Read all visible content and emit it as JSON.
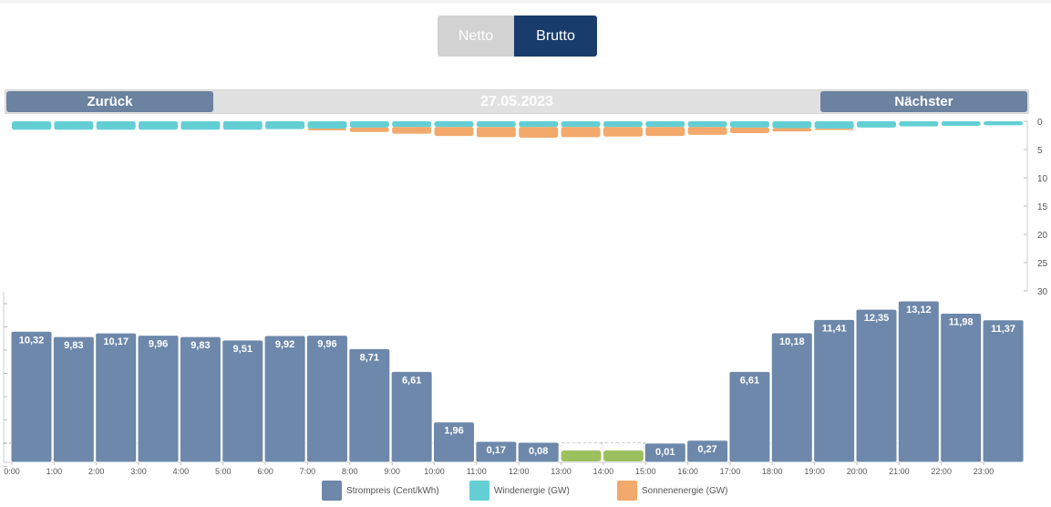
{
  "toggle": {
    "netto_label": "Netto",
    "brutto_label": "Brutto",
    "selected": "Brutto"
  },
  "nav": {
    "back_label": "Zurück",
    "date": "27.05.2023",
    "next_label": "Nächster"
  },
  "colors": {
    "price": "#6d88aa",
    "price_low": "#9dc05e",
    "wind": "#63cfd4",
    "solar": "#f2a96b",
    "toggle_active": "#183c6b",
    "toggle_inactive": "#d2d2d2",
    "nav_button": "#6b82a1"
  },
  "chart_data": [
    {
      "type": "bar",
      "categories": [
        "0:00",
        "1:00",
        "2:00",
        "3:00",
        "4:00",
        "5:00",
        "6:00",
        "7:00",
        "8:00",
        "9:00",
        "10:00",
        "11:00",
        "12:00",
        "13:00",
        "14:00",
        "15:00",
        "16:00",
        "17:00",
        "18:00",
        "19:00",
        "20:00",
        "21:00",
        "22:00",
        "23:00"
      ],
      "series": [
        {
          "name": "Strompreis (Cent/kWh)",
          "values": [
            10.32,
            9.83,
            10.17,
            9.96,
            9.83,
            9.51,
            9.92,
            9.96,
            8.71,
            6.61,
            1.96,
            0.17,
            0.08,
            -0.5,
            -0.5,
            0.01,
            0.27,
            6.61,
            10.18,
            11.41,
            12.35,
            13.12,
            11.98,
            11.37
          ],
          "labels": [
            "10,32",
            "9,83",
            "10,17",
            "9,96",
            "9,83",
            "9,51",
            "9,92",
            "9,96",
            "8,71",
            "6,61",
            "1,96",
            "0,17",
            "0,08",
            "",
            "",
            "0,01",
            "0,27",
            "6,61",
            "10,18",
            "11,41",
            "12,35",
            "13,12",
            "11,98",
            "11,37"
          ]
        }
      ],
      "xlabel": "",
      "ylabel": "",
      "ylim": [
        -1,
        14
      ],
      "grid": false
    },
    {
      "type": "bar",
      "stacked": true,
      "categories": [
        "0:00",
        "1:00",
        "2:00",
        "3:00",
        "4:00",
        "5:00",
        "6:00",
        "7:00",
        "8:00",
        "9:00",
        "10:00",
        "11:00",
        "12:00",
        "13:00",
        "14:00",
        "15:00",
        "16:00",
        "17:00",
        "18:00",
        "19:00",
        "20:00",
        "21:00",
        "22:00",
        "23:00"
      ],
      "series": [
        {
          "name": "Windenergie (GW)",
          "values": [
            1.5,
            1.5,
            1.5,
            1.5,
            1.5,
            1.5,
            1.4,
            1.3,
            1.1,
            1.0,
            1.0,
            1.0,
            1.0,
            1.0,
            1.0,
            1.0,
            1.0,
            1.1,
            1.2,
            1.3,
            1.1,
            0.9,
            0.8,
            0.7
          ]
        },
        {
          "name": "Sonnenenergie (GW)",
          "values": [
            0,
            0,
            0,
            0,
            0,
            0,
            0,
            0.3,
            0.8,
            1.2,
            1.6,
            1.8,
            1.9,
            1.8,
            1.7,
            1.6,
            1.4,
            1.0,
            0.6,
            0.2,
            0,
            0,
            0,
            0
          ]
        }
      ],
      "yticks": [
        "0",
        "5",
        "10",
        "15",
        "20",
        "25",
        "30"
      ],
      "ylim": [
        0,
        30
      ],
      "y_inverted": true,
      "grid": false
    }
  ],
  "legend": [
    {
      "name": "Strompreis (Cent/kWh)",
      "color": "#6d88aa"
    },
    {
      "name": "Windenergie (GW)",
      "color": "#63cfd4"
    },
    {
      "name": "Sonnenenergie (GW)",
      "color": "#f2a96b"
    }
  ]
}
